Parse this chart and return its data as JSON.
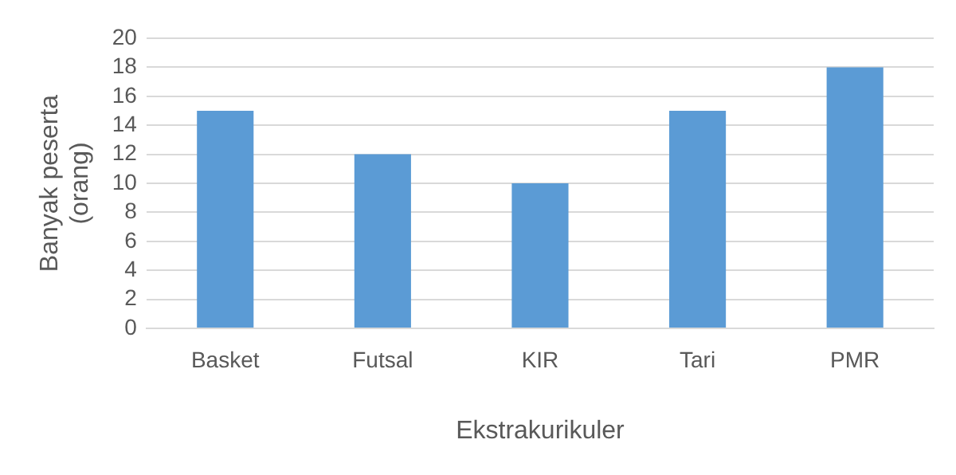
{
  "chart_data": {
    "type": "bar",
    "xlabel": "Ekstrakurikuler",
    "ylabel": "Banyak peserta (orang)",
    "categories": [
      "Basket",
      "Futsal",
      "KIR",
      "Tari",
      "PMR"
    ],
    "values": [
      15,
      12,
      10,
      15,
      18
    ],
    "color": "#5b9bd5",
    "ylim": [
      0,
      20
    ],
    "yticks": [
      0,
      2,
      4,
      6,
      8,
      10,
      12,
      14,
      16,
      18,
      20
    ],
    "grid": "y",
    "legend": false
  }
}
